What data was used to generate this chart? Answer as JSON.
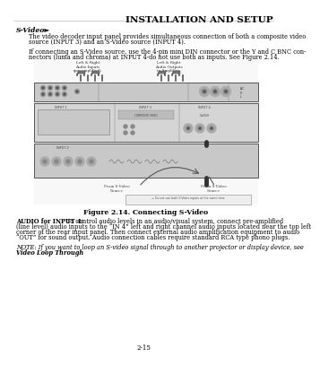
{
  "title": "INSTALLATION AND SETUP",
  "section_heading": "S-Video►",
  "para1_line1": "The video decoder input panel provides simultaneous connection of both a composite video",
  "para1_line2": "source (INPUT 3) and an S-Video source (INPUT 4).",
  "para2_line1": "If connecting an S-Video source, use the 4-pin mini DIN connector or the Y and C BNC con-",
  "para2_line2": "nectors (luma and chroma) at INPUT 4-do not use both as inputs. See Figure 2.14.",
  "figure_caption": "Figure 2.14. Connecting S-Video",
  "audio_bold": "AUDIO for INPUT 4:",
  "audio_rest_line1": " To control audio levels in an audio/visual system, connect pre-amplified",
  "audio_line2": "(line level) audio inputs to the “IN 4” left and right channel audio inputs located near the top left",
  "audio_line3": "corner of the rear input panel. Then connect external audio amplification equipment to audio",
  "audio_line4": "“OUT” for sound output. Audio connection cables require standard RCA type phono plugs.",
  "note_line1": "NOTE: If you want to loop an S-video signal through to another projector or display device, see",
  "note_line2": "Video Loop Through",
  "page_number": "2-15",
  "bg_color": "#ffffff",
  "text_color": "#000000",
  "gray_dark": "#444444",
  "gray_mid": "#888888",
  "gray_light": "#cccccc",
  "rack_color": "#c8c8c8",
  "rack_border": "#555555"
}
